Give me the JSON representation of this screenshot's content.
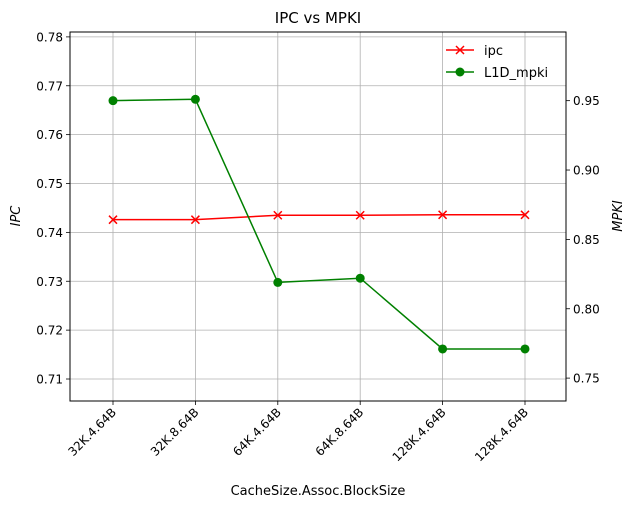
{
  "chart_data": {
    "type": "line",
    "title": "IPC vs MPKI",
    "xlabel": "CacheSize.Assoc.BlockSize",
    "ylabel_left": "IPC",
    "ylabel_right": "MPKI",
    "categories": [
      "32K.4.64B",
      "32K.8.64B",
      "64K.4.64B",
      "64K.8.64B",
      "128K.4.64B",
      "128K.4.64B"
    ],
    "left_axis": {
      "ylim": [
        0.7055,
        0.781
      ],
      "ticks": [
        0.71,
        0.72,
        0.73,
        0.74,
        0.75,
        0.76,
        0.77,
        0.78
      ],
      "tick_labels": [
        "0.71",
        "0.72",
        "0.73",
        "0.74",
        "0.75",
        "0.76",
        "0.77",
        "0.78"
      ]
    },
    "right_axis": {
      "ylim": [
        0.7335,
        0.9995
      ],
      "ticks": [
        0.75,
        0.8,
        0.85,
        0.9,
        0.95
      ],
      "tick_labels": [
        "0.75",
        "0.80",
        "0.85",
        "0.90",
        "0.95"
      ]
    },
    "series": [
      {
        "name": "ipc",
        "axis": "left",
        "color": "#ff0000",
        "marker": "x",
        "values": [
          0.7426,
          0.7426,
          0.7435,
          0.7435,
          0.7436,
          0.7436
        ]
      },
      {
        "name": "L1D_mpki",
        "axis": "right",
        "color": "#008000",
        "marker": "o",
        "values": [
          0.95,
          0.951,
          0.819,
          0.822,
          0.771,
          0.771
        ]
      }
    ],
    "grid": true,
    "legend_position": "top-right"
  }
}
